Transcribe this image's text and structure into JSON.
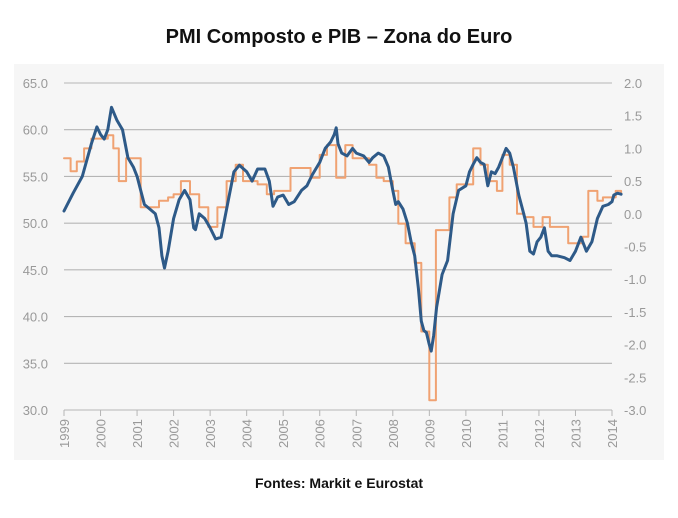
{
  "chart_data": {
    "type": "line",
    "title": "PMI Composto e PIB – Zona do Euro",
    "source": "Fontes: Markit e Eurostat",
    "xlabel": "",
    "ylabel": "",
    "x_range": [
      1999,
      2014
    ],
    "x_ticks": [
      "1999",
      "2000",
      "2001",
      "2002",
      "2003",
      "2004",
      "2005",
      "2006",
      "2007",
      "2008",
      "2009",
      "2010",
      "2011",
      "2012",
      "2013",
      "2014"
    ],
    "ylim_left": [
      30,
      65
    ],
    "yticks_left": [
      "65.0",
      "60.0",
      "55.0",
      "50.0",
      "45.0",
      "40.0",
      "35.0",
      "30.0"
    ],
    "ylim_right": [
      -3.0,
      2.0
    ],
    "yticks_right": [
      "2.0",
      "1.5",
      "1.0",
      "0.5",
      "0.0",
      "-0.5",
      "-1.0",
      "-1.5",
      "-2.0",
      "-2.5",
      "-3.0"
    ],
    "grid": "horizontal",
    "series": [
      {
        "name": "",
        "axis": "left",
        "color": "#2e5a88",
        "style": "smooth",
        "points": [
          [
            1999.0,
            51.3
          ],
          [
            1999.25,
            53.2
          ],
          [
            1999.5,
            55.0
          ],
          [
            1999.75,
            58.5
          ],
          [
            1999.9,
            60.3
          ],
          [
            2000.0,
            59.5
          ],
          [
            2000.1,
            59.0
          ],
          [
            2000.2,
            60.0
          ],
          [
            2000.3,
            62.4
          ],
          [
            2000.45,
            61.0
          ],
          [
            2000.6,
            60.0
          ],
          [
            2000.75,
            57.0
          ],
          [
            2000.9,
            56.0
          ],
          [
            2001.0,
            55.0
          ],
          [
            2001.1,
            53.5
          ],
          [
            2001.2,
            52.0
          ],
          [
            2001.35,
            51.5
          ],
          [
            2001.5,
            51.0
          ],
          [
            2001.6,
            49.5
          ],
          [
            2001.68,
            46.5
          ],
          [
            2001.75,
            45.2
          ],
          [
            2001.85,
            47.0
          ],
          [
            2002.0,
            50.5
          ],
          [
            2002.15,
            52.5
          ],
          [
            2002.3,
            53.5
          ],
          [
            2002.45,
            52.5
          ],
          [
            2002.55,
            49.5
          ],
          [
            2002.6,
            49.3
          ],
          [
            2002.7,
            51.0
          ],
          [
            2002.85,
            50.5
          ],
          [
            2003.0,
            49.5
          ],
          [
            2003.15,
            48.3
          ],
          [
            2003.3,
            48.5
          ],
          [
            2003.5,
            52.5
          ],
          [
            2003.65,
            55.5
          ],
          [
            2003.8,
            56.2
          ],
          [
            2004.0,
            55.5
          ],
          [
            2004.15,
            54.5
          ],
          [
            2004.3,
            55.8
          ],
          [
            2004.5,
            55.8
          ],
          [
            2004.62,
            54.5
          ],
          [
            2004.72,
            51.8
          ],
          [
            2004.85,
            52.8
          ],
          [
            2005.0,
            53.0
          ],
          [
            2005.15,
            52.0
          ],
          [
            2005.3,
            52.3
          ],
          [
            2005.5,
            53.5
          ],
          [
            2005.65,
            54.0
          ],
          [
            2005.8,
            55.2
          ],
          [
            2006.0,
            56.5
          ],
          [
            2006.15,
            58.0
          ],
          [
            2006.3,
            58.7
          ],
          [
            2006.4,
            59.5
          ],
          [
            2006.45,
            60.2
          ],
          [
            2006.5,
            58.5
          ],
          [
            2006.6,
            57.5
          ],
          [
            2006.75,
            57.2
          ],
          [
            2006.9,
            58.0
          ],
          [
            2007.0,
            57.5
          ],
          [
            2007.2,
            57.2
          ],
          [
            2007.35,
            56.5
          ],
          [
            2007.45,
            57.0
          ],
          [
            2007.6,
            57.5
          ],
          [
            2007.75,
            57.2
          ],
          [
            2007.88,
            56.0
          ],
          [
            2008.0,
            53.5
          ],
          [
            2008.08,
            52.0
          ],
          [
            2008.15,
            52.3
          ],
          [
            2008.28,
            51.5
          ],
          [
            2008.4,
            50.0
          ],
          [
            2008.5,
            48.0
          ],
          [
            2008.6,
            46.5
          ],
          [
            2008.7,
            43.0
          ],
          [
            2008.78,
            39.5
          ],
          [
            2008.85,
            38.5
          ],
          [
            2008.92,
            38.3
          ],
          [
            2009.0,
            37.0
          ],
          [
            2009.05,
            36.3
          ],
          [
            2009.12,
            38.0
          ],
          [
            2009.2,
            41.0
          ],
          [
            2009.35,
            44.5
          ],
          [
            2009.5,
            46.0
          ],
          [
            2009.65,
            51.0
          ],
          [
            2009.8,
            53.5
          ],
          [
            2010.0,
            54.0
          ],
          [
            2010.1,
            55.5
          ],
          [
            2010.2,
            56.3
          ],
          [
            2010.3,
            57.0
          ],
          [
            2010.4,
            56.5
          ],
          [
            2010.5,
            56.3
          ],
          [
            2010.6,
            54.0
          ],
          [
            2010.7,
            55.5
          ],
          [
            2010.8,
            55.3
          ],
          [
            2010.9,
            56.0
          ],
          [
            2011.0,
            57.0
          ],
          [
            2011.1,
            58.0
          ],
          [
            2011.2,
            57.5
          ],
          [
            2011.3,
            56.0
          ],
          [
            2011.45,
            53.0
          ],
          [
            2011.55,
            51.5
          ],
          [
            2011.65,
            50.0
          ],
          [
            2011.75,
            47.0
          ],
          [
            2011.85,
            46.7
          ],
          [
            2011.95,
            48.0
          ],
          [
            2012.05,
            48.5
          ],
          [
            2012.15,
            49.5
          ],
          [
            2012.25,
            47.0
          ],
          [
            2012.35,
            46.5
          ],
          [
            2012.5,
            46.5
          ],
          [
            2012.7,
            46.3
          ],
          [
            2012.85,
            46.0
          ],
          [
            2013.0,
            47.0
          ],
          [
            2013.15,
            48.5
          ],
          [
            2013.3,
            47.0
          ],
          [
            2013.45,
            48.0
          ],
          [
            2013.6,
            50.5
          ],
          [
            2013.75,
            51.8
          ],
          [
            2013.9,
            52.0
          ],
          [
            2014.0,
            52.3
          ],
          [
            2014.05,
            53.0
          ],
          [
            2014.15,
            53.2
          ],
          [
            2014.25,
            53.1
          ]
        ]
      },
      {
        "name": "",
        "axis": "right",
        "color": "#f0a272",
        "style": "step",
        "points": [
          [
            1999.0,
            0.85
          ],
          [
            1999.18,
            0.65
          ],
          [
            1999.35,
            0.8
          ],
          [
            1999.55,
            1.0
          ],
          [
            1999.75,
            1.15
          ],
          [
            2000.0,
            1.15
          ],
          [
            2000.2,
            1.2
          ],
          [
            2000.35,
            1.0
          ],
          [
            2000.5,
            0.5
          ],
          [
            2000.7,
            0.85
          ],
          [
            2000.9,
            0.85
          ],
          [
            2001.1,
            0.1
          ],
          [
            2001.35,
            0.1
          ],
          [
            2001.6,
            0.2
          ],
          [
            2001.85,
            0.25
          ],
          [
            2002.0,
            0.3
          ],
          [
            2002.2,
            0.5
          ],
          [
            2002.45,
            0.3
          ],
          [
            2002.7,
            0.1
          ],
          [
            2002.95,
            -0.2
          ],
          [
            2003.2,
            0.1
          ],
          [
            2003.45,
            0.5
          ],
          [
            2003.7,
            0.75
          ],
          [
            2003.9,
            0.5
          ],
          [
            2004.1,
            0.5
          ],
          [
            2004.3,
            0.45
          ],
          [
            2004.55,
            0.3
          ],
          [
            2004.75,
            0.35
          ],
          [
            2005.0,
            0.35
          ],
          [
            2005.2,
            0.7
          ],
          [
            2005.45,
            0.7
          ],
          [
            2005.75,
            0.55
          ],
          [
            2006.0,
            0.9
          ],
          [
            2006.2,
            1.05
          ],
          [
            2006.45,
            0.55
          ],
          [
            2006.7,
            1.05
          ],
          [
            2006.9,
            0.85
          ],
          [
            2007.1,
            0.85
          ],
          [
            2007.35,
            0.75
          ],
          [
            2007.55,
            0.55
          ],
          [
            2007.75,
            0.5
          ],
          [
            2008.0,
            0.35
          ],
          [
            2008.15,
            -0.15
          ],
          [
            2008.35,
            -0.45
          ],
          [
            2008.6,
            -0.75
          ],
          [
            2008.78,
            -1.8
          ],
          [
            2009.0,
            -2.85
          ],
          [
            2009.12,
            -2.85
          ],
          [
            2009.18,
            -0.25
          ],
          [
            2009.4,
            -0.25
          ],
          [
            2009.55,
            0.25
          ],
          [
            2009.75,
            0.45
          ],
          [
            2010.0,
            0.45
          ],
          [
            2010.2,
            1.0
          ],
          [
            2010.4,
            0.75
          ],
          [
            2010.6,
            0.5
          ],
          [
            2010.85,
            0.35
          ],
          [
            2011.0,
            0.9
          ],
          [
            2011.2,
            0.75
          ],
          [
            2011.4,
            0.0
          ],
          [
            2011.6,
            -0.05
          ],
          [
            2011.85,
            -0.2
          ],
          [
            2012.1,
            -0.05
          ],
          [
            2012.3,
            -0.2
          ],
          [
            2012.55,
            -0.2
          ],
          [
            2012.8,
            -0.45
          ],
          [
            2013.0,
            -0.45
          ],
          [
            2013.2,
            -0.35
          ],
          [
            2013.35,
            0.35
          ],
          [
            2013.6,
            0.2
          ],
          [
            2013.75,
            0.25
          ],
          [
            2013.95,
            0.25
          ],
          [
            2014.1,
            0.35
          ],
          [
            2014.25,
            0.3
          ]
        ]
      }
    ]
  }
}
